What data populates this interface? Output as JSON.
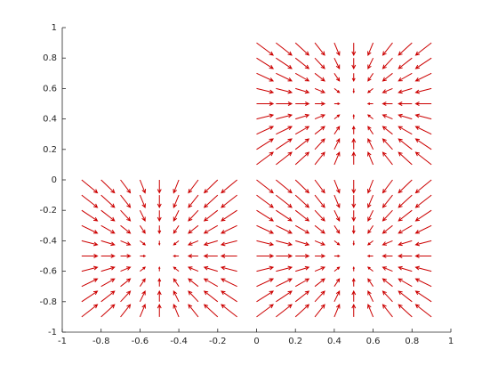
{
  "chart_data": {
    "type": "quiver",
    "color": "#cc0000",
    "xlim": [
      -1,
      1
    ],
    "ylim": [
      -1,
      1
    ],
    "xticks": [
      -1,
      -0.8,
      -0.6,
      -0.4,
      -0.2,
      0,
      0.2,
      0.4,
      0.6,
      0.8,
      1
    ],
    "yticks": [
      -1,
      -0.8,
      -0.6,
      -0.4,
      -0.2,
      0,
      0.2,
      0.4,
      0.6,
      0.8,
      1
    ],
    "x": [
      -0.9,
      -0.8,
      -0.7,
      -0.6,
      -0.5,
      -0.4,
      -0.3,
      -0.2,
      -0.1,
      0,
      0.1,
      0.2,
      0.3,
      0.4,
      0.5,
      0.6,
      0.7,
      0.8,
      0.9
    ],
    "y": [
      0.9,
      0.8,
      0.7,
      0.6,
      0.5,
      0.4,
      0.3,
      0.2,
      0.1,
      0,
      -0.1,
      -0.2,
      -0.3,
      -0.4,
      -0.5,
      -0.6,
      -0.7,
      -0.8,
      -0.9
    ],
    "u": [
      [
        null,
        null,
        null,
        null,
        null,
        null,
        null,
        null,
        null,
        1,
        0.95,
        0.81,
        0.59,
        0.31,
        0,
        -0.31,
        -0.59,
        -0.81,
        -0.95
      ],
      [
        null,
        null,
        null,
        null,
        null,
        null,
        null,
        null,
        null,
        1,
        0.95,
        0.81,
        0.59,
        0.31,
        0,
        -0.31,
        -0.59,
        -0.81,
        -0.95
      ],
      [
        null,
        null,
        null,
        null,
        null,
        null,
        null,
        null,
        null,
        1,
        0.95,
        0.81,
        0.59,
        0.31,
        0,
        -0.31,
        -0.59,
        -0.81,
        -0.95
      ],
      [
        null,
        null,
        null,
        null,
        null,
        null,
        null,
        null,
        null,
        1,
        0.95,
        0.81,
        0.59,
        0.31,
        0,
        -0.31,
        -0.59,
        -0.81,
        -0.95
      ],
      [
        null,
        null,
        null,
        null,
        null,
        null,
        null,
        null,
        null,
        1,
        0.95,
        0.81,
        0.59,
        0.31,
        0,
        -0.31,
        -0.59,
        -0.81,
        -0.95
      ],
      [
        null,
        null,
        null,
        null,
        null,
        null,
        null,
        null,
        null,
        1,
        0.95,
        0.81,
        0.59,
        0.31,
        0,
        -0.31,
        -0.59,
        -0.81,
        -0.95
      ],
      [
        null,
        null,
        null,
        null,
        null,
        null,
        null,
        null,
        null,
        1,
        0.95,
        0.81,
        0.59,
        0.31,
        0,
        -0.31,
        -0.59,
        -0.81,
        -0.95
      ],
      [
        null,
        null,
        null,
        null,
        null,
        null,
        null,
        null,
        null,
        1,
        0.95,
        0.81,
        0.59,
        0.31,
        0,
        -0.31,
        -0.59,
        -0.81,
        -0.95
      ],
      [
        null,
        null,
        null,
        null,
        null,
        null,
        null,
        null,
        null,
        1,
        0.95,
        0.81,
        0.59,
        0.31,
        0,
        -0.31,
        -0.59,
        -0.81,
        -0.95
      ],
      [
        0.95,
        0.81,
        0.59,
        0.31,
        0,
        -0.31,
        -0.59,
        -0.81,
        -0.95,
        1,
        0.95,
        0.81,
        0.59,
        0.31,
        0,
        -0.31,
        -0.59,
        -0.81,
        -0.95
      ],
      [
        0.95,
        0.81,
        0.59,
        0.31,
        0,
        -0.31,
        -0.59,
        -0.81,
        -0.95,
        1,
        0.95,
        0.81,
        0.59,
        0.31,
        0,
        -0.31,
        -0.59,
        -0.81,
        -0.95
      ],
      [
        0.95,
        0.81,
        0.59,
        0.31,
        0,
        -0.31,
        -0.59,
        -0.81,
        -0.95,
        1,
        0.95,
        0.81,
        0.59,
        0.31,
        0,
        -0.31,
        -0.59,
        -0.81,
        -0.95
      ],
      [
        0.95,
        0.81,
        0.59,
        0.31,
        0,
        -0.31,
        -0.59,
        -0.81,
        -0.95,
        1,
        0.95,
        0.81,
        0.59,
        0.31,
        0,
        -0.31,
        -0.59,
        -0.81,
        -0.95
      ],
      [
        0.95,
        0.81,
        0.59,
        0.31,
        0,
        -0.31,
        -0.59,
        -0.81,
        -0.95,
        1,
        0.95,
        0.81,
        0.59,
        0.31,
        0,
        -0.31,
        -0.59,
        -0.81,
        -0.95
      ],
      [
        0.95,
        0.81,
        0.59,
        0.31,
        0,
        -0.31,
        -0.59,
        -0.81,
        -0.95,
        1,
        0.95,
        0.81,
        0.59,
        0.31,
        0,
        -0.31,
        -0.59,
        -0.81,
        -0.95
      ],
      [
        0.95,
        0.81,
        0.59,
        0.31,
        0,
        -0.31,
        -0.59,
        -0.81,
        -0.95,
        1,
        0.95,
        0.81,
        0.59,
        0.31,
        0,
        -0.31,
        -0.59,
        -0.81,
        -0.95
      ],
      [
        0.95,
        0.81,
        0.59,
        0.31,
        0,
        -0.31,
        -0.59,
        -0.81,
        -0.95,
        1,
        0.95,
        0.81,
        0.59,
        0.31,
        0,
        -0.31,
        -0.59,
        -0.81,
        -0.95
      ],
      [
        0.95,
        0.81,
        0.59,
        0.31,
        0,
        -0.31,
        -0.59,
        -0.81,
        -0.95,
        1,
        0.95,
        0.81,
        0.59,
        0.31,
        0,
        -0.31,
        -0.59,
        -0.81,
        -0.95
      ],
      [
        0.95,
        0.81,
        0.59,
        0.31,
        0,
        -0.31,
        -0.59,
        -0.81,
        -0.95,
        1,
        0.95,
        0.81,
        0.59,
        0.31,
        0,
        -0.31,
        -0.59,
        -0.81,
        -0.95
      ]
    ],
    "v": [
      [
        null,
        null,
        null,
        null,
        null,
        null,
        null,
        null,
        null,
        -0.95,
        -0.95,
        -0.95,
        -0.95,
        -0.95,
        -0.95,
        -0.95,
        -0.95,
        -0.95,
        -0.95
      ],
      [
        null,
        null,
        null,
        null,
        null,
        null,
        null,
        null,
        null,
        -0.81,
        -0.81,
        -0.81,
        -0.81,
        -0.81,
        -0.81,
        -0.81,
        -0.81,
        -0.81,
        -0.81
      ],
      [
        null,
        null,
        null,
        null,
        null,
        null,
        null,
        null,
        null,
        -0.59,
        -0.59,
        -0.59,
        -0.59,
        -0.59,
        -0.59,
        -0.59,
        -0.59,
        -0.59,
        -0.59
      ],
      [
        null,
        null,
        null,
        null,
        null,
        null,
        null,
        null,
        null,
        -0.31,
        -0.31,
        -0.31,
        -0.31,
        -0.31,
        -0.31,
        -0.31,
        -0.31,
        -0.31,
        -0.31
      ],
      [
        null,
        null,
        null,
        null,
        null,
        null,
        null,
        null,
        null,
        0,
        0,
        0,
        0,
        0,
        0,
        0,
        0,
        0,
        0
      ],
      [
        null,
        null,
        null,
        null,
        null,
        null,
        null,
        null,
        null,
        0.31,
        0.31,
        0.31,
        0.31,
        0.31,
        0.31,
        0.31,
        0.31,
        0.31,
        0.31
      ],
      [
        null,
        null,
        null,
        null,
        null,
        null,
        null,
        null,
        null,
        0.59,
        0.59,
        0.59,
        0.59,
        0.59,
        0.59,
        0.59,
        0.59,
        0.59,
        0.59
      ],
      [
        null,
        null,
        null,
        null,
        null,
        null,
        null,
        null,
        null,
        0.81,
        0.81,
        0.81,
        0.81,
        0.81,
        0.81,
        0.81,
        0.81,
        0.81,
        0.81
      ],
      [
        null,
        null,
        null,
        null,
        null,
        null,
        null,
        null,
        null,
        0.95,
        0.95,
        0.95,
        0.95,
        0.95,
        0.95,
        0.95,
        0.95,
        0.95,
        0.95
      ],
      [
        -1,
        -1,
        -1,
        -1,
        -1,
        -1,
        -1,
        -1,
        -1,
        -1,
        -1,
        -1,
        -1,
        -1,
        -1,
        -1,
        -1,
        -1,
        -1
      ],
      [
        -0.95,
        -0.95,
        -0.95,
        -0.95,
        -0.95,
        -0.95,
        -0.95,
        -0.95,
        -0.95,
        -0.95,
        -0.95,
        -0.95,
        -0.95,
        -0.95,
        -0.95,
        -0.95,
        -0.95,
        -0.95,
        -0.95
      ],
      [
        -0.81,
        -0.81,
        -0.81,
        -0.81,
        -0.81,
        -0.81,
        -0.81,
        -0.81,
        -0.81,
        -0.81,
        -0.81,
        -0.81,
        -0.81,
        -0.81,
        -0.81,
        -0.81,
        -0.81,
        -0.81,
        -0.81
      ],
      [
        -0.59,
        -0.59,
        -0.59,
        -0.59,
        -0.59,
        -0.59,
        -0.59,
        -0.59,
        -0.59,
        -0.59,
        -0.59,
        -0.59,
        -0.59,
        -0.59,
        -0.59,
        -0.59,
        -0.59,
        -0.59,
        -0.59
      ],
      [
        -0.31,
        -0.31,
        -0.31,
        -0.31,
        -0.31,
        -0.31,
        -0.31,
        -0.31,
        -0.31,
        -0.31,
        -0.31,
        -0.31,
        -0.31,
        -0.31,
        -0.31,
        -0.31,
        -0.31,
        -0.31,
        -0.31
      ],
      [
        0,
        0,
        0,
        0,
        0,
        0,
        0,
        0,
        0,
        0,
        0,
        0,
        0,
        0,
        0,
        0,
        0,
        0,
        0
      ],
      [
        0.31,
        0.31,
        0.31,
        0.31,
        0.31,
        0.31,
        0.31,
        0.31,
        0.31,
        0.31,
        0.31,
        0.31,
        0.31,
        0.31,
        0.31,
        0.31,
        0.31,
        0.31,
        0.31
      ],
      [
        0.59,
        0.59,
        0.59,
        0.59,
        0.59,
        0.59,
        0.59,
        0.59,
        0.59,
        0.59,
        0.59,
        0.59,
        0.59,
        0.59,
        0.59,
        0.59,
        0.59,
        0.59,
        0.59
      ],
      [
        0.81,
        0.81,
        0.81,
        0.81,
        0.81,
        0.81,
        0.81,
        0.81,
        0.81,
        0.81,
        0.81,
        0.81,
        0.81,
        0.81,
        0.81,
        0.81,
        0.81,
        0.81,
        0.81
      ],
      [
        0.95,
        0.95,
        0.95,
        0.95,
        0.95,
        0.95,
        0.95,
        0.95,
        0.95,
        0.95,
        0.95,
        0.95,
        0.95,
        0.95,
        0.95,
        0.95,
        0.95,
        0.95,
        0.95
      ]
    ]
  }
}
